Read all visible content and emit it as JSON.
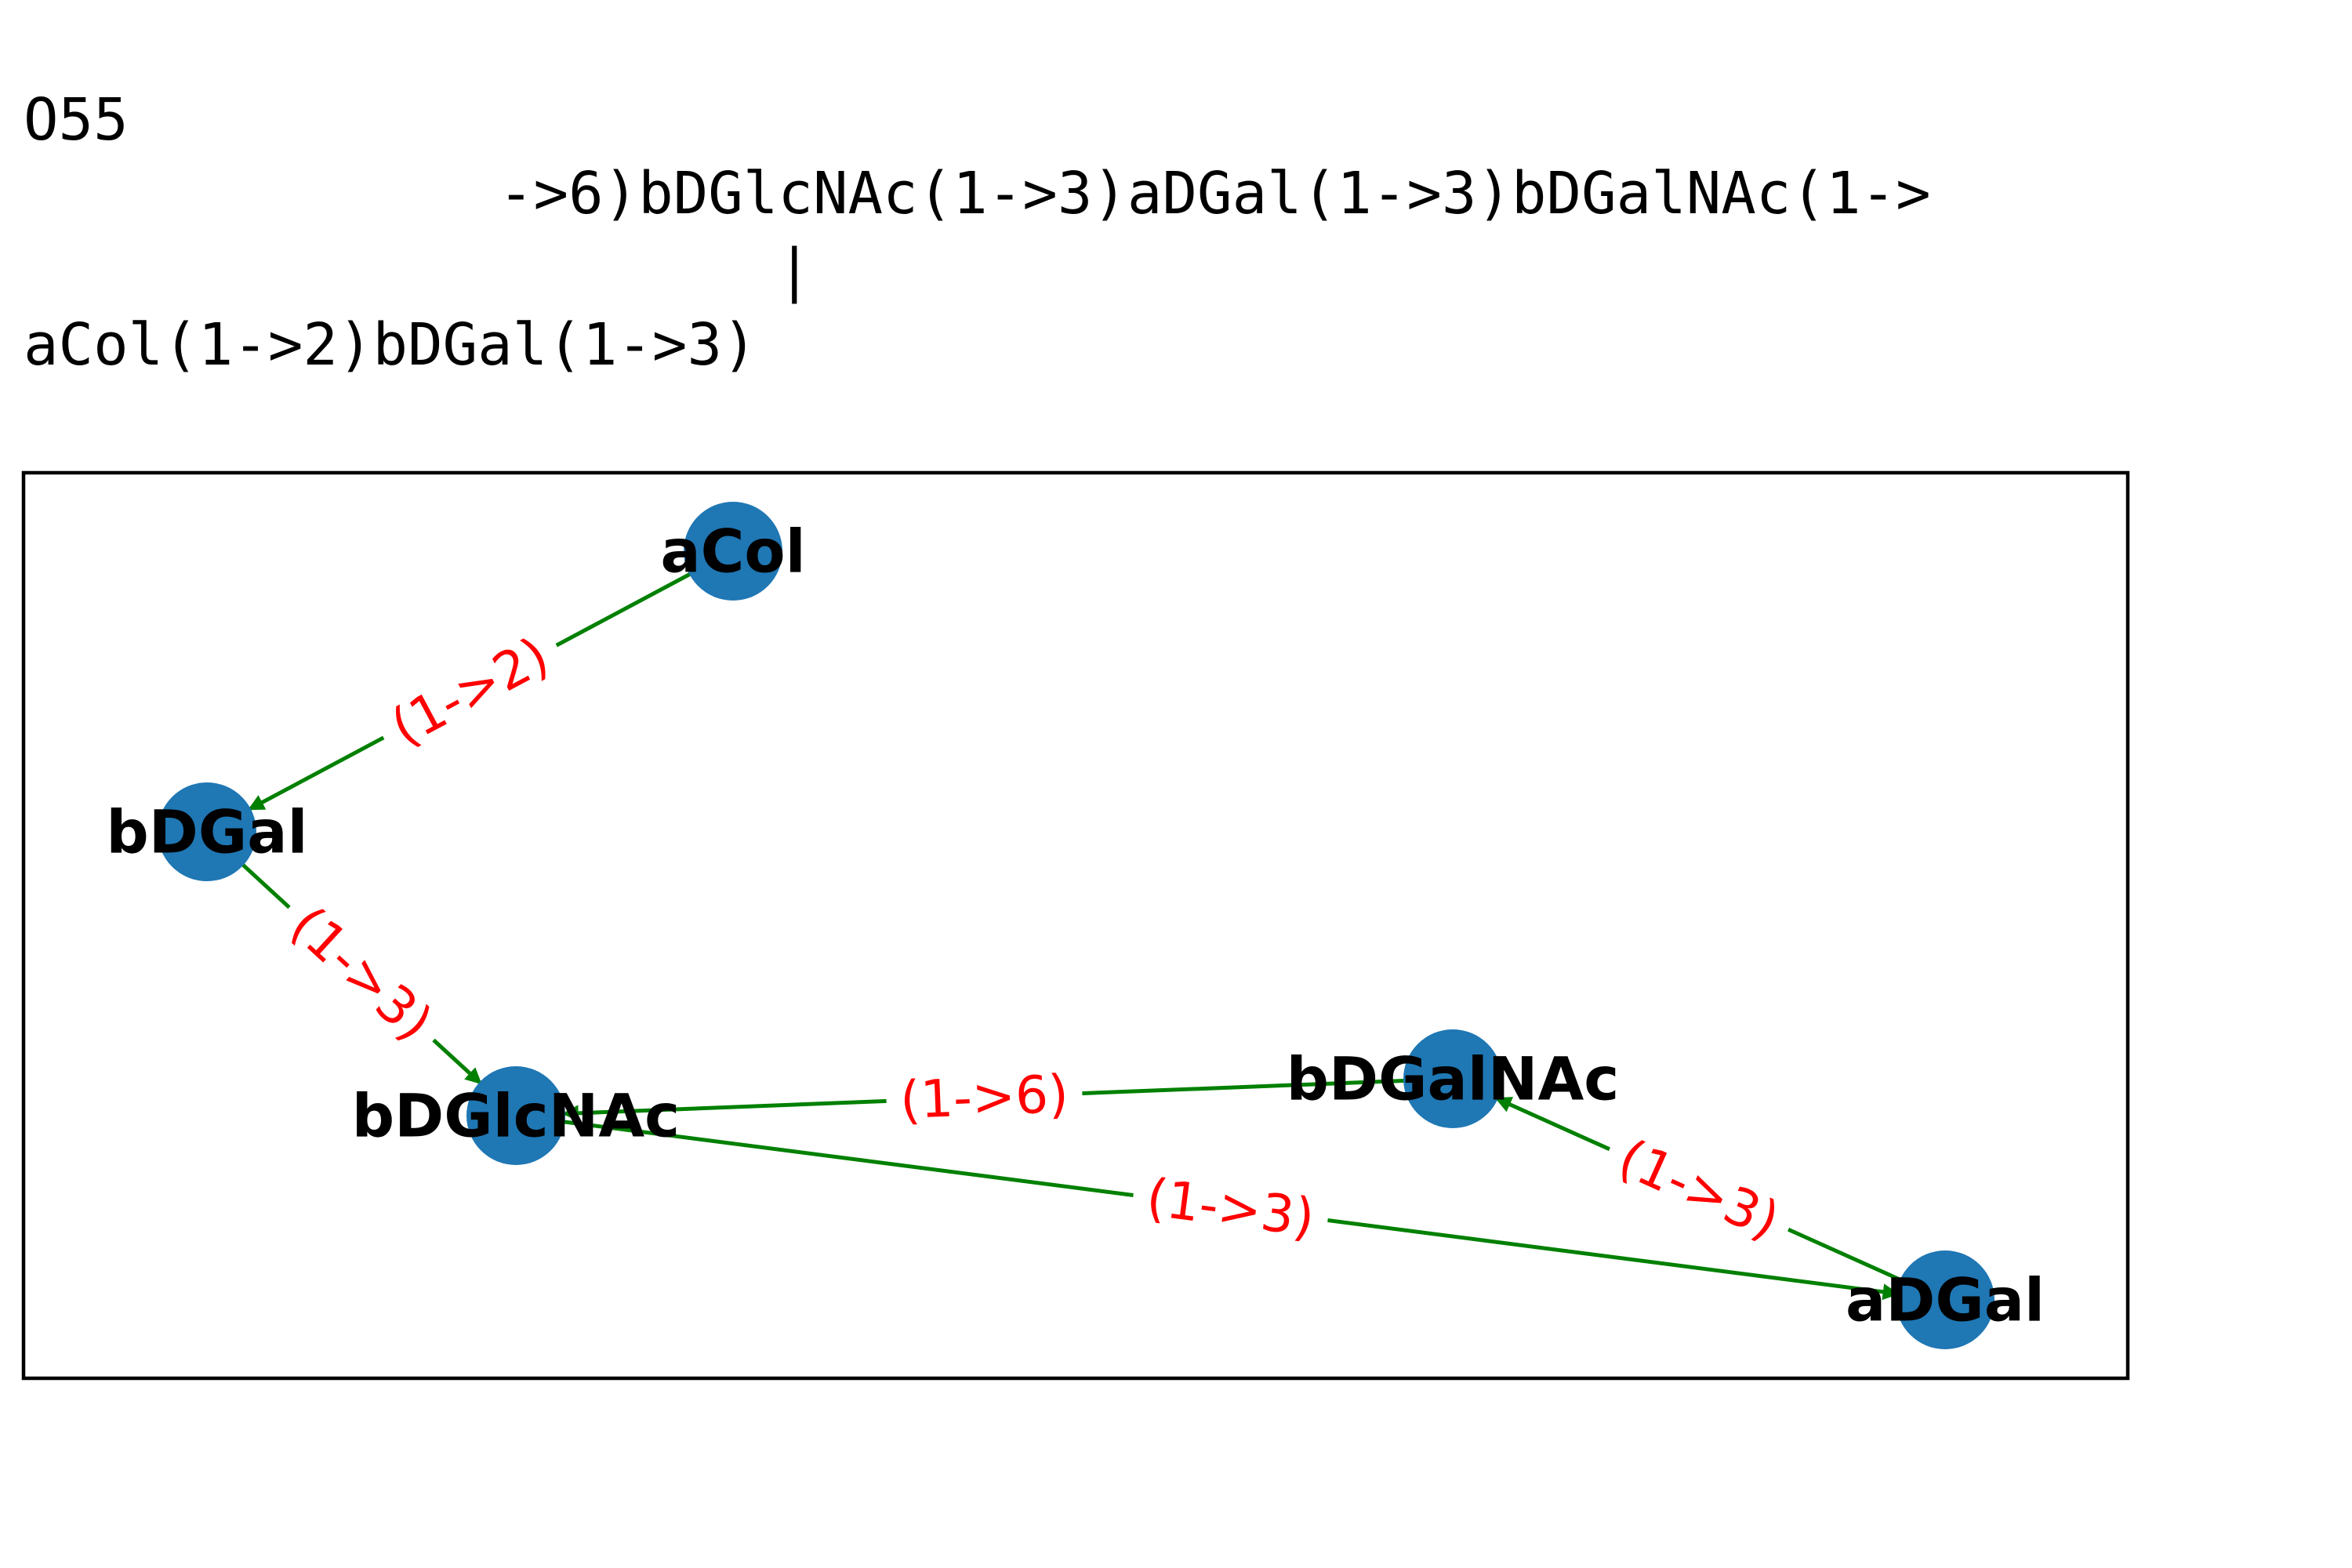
{
  "header": {
    "id": "O55",
    "main_chain": "->6)bDGlcNAc(1->3)aDGal(1->3)bDGalNAc(1->",
    "branch_bar": "|",
    "branch": "aCol(1->2)bDGal(1->3)"
  },
  "colors": {
    "node_fill": "#1f77b4",
    "edge_stroke": "#008000",
    "edge_label": "#ff0000",
    "frame": "#000000"
  },
  "nodes": [
    {
      "id": "aCol",
      "label": "aCol"
    },
    {
      "id": "bDGal",
      "label": "bDGal"
    },
    {
      "id": "bDGlcNAc",
      "label": "bDGlcNAc"
    },
    {
      "id": "bDGalNAc",
      "label": "bDGalNAc"
    },
    {
      "id": "aDGal",
      "label": "aDGal"
    }
  ],
  "edges": [
    {
      "from": "aCol",
      "to": "bDGal",
      "label": "(1->2)"
    },
    {
      "from": "bDGal",
      "to": "bDGlcNAc",
      "label": "(1->3)"
    },
    {
      "from": "bDGalNAc",
      "to": "bDGlcNAc",
      "label": "(1->6)"
    },
    {
      "from": "bDGlcNAc",
      "to": "aDGal",
      "label": "(1->3)"
    },
    {
      "from": "aDGal",
      "to": "bDGalNAc",
      "label": "(1->3)"
    }
  ]
}
